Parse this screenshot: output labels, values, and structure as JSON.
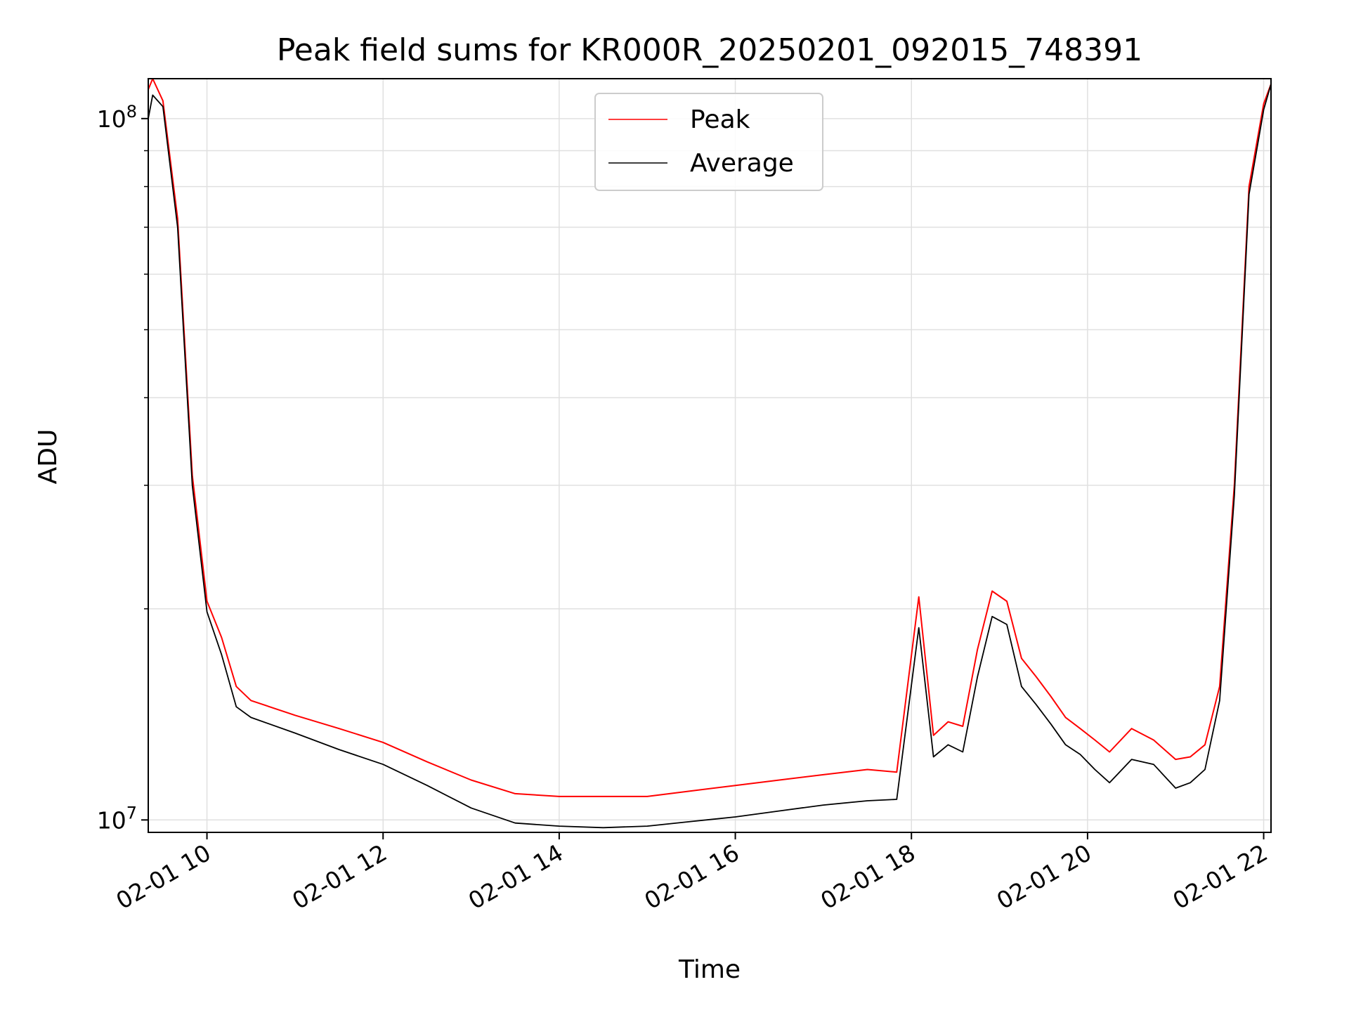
{
  "chart_data": {
    "type": "line",
    "title": "Peak field sums for KR000R_20250201_092015_748391",
    "xlabel": "Time",
    "ylabel": "ADU",
    "x_scale": "time",
    "y_scale": "log",
    "xlim": [
      "2025-02-01 09:20",
      "2025-02-01 22:05"
    ],
    "ylim": [
      9600000,
      114000000
    ],
    "x_ticks": [
      {
        "value": "2025-02-01 10:00",
        "label": "02-01 10"
      },
      {
        "value": "2025-02-01 12:00",
        "label": "02-01 12"
      },
      {
        "value": "2025-02-01 14:00",
        "label": "02-01 14"
      },
      {
        "value": "2025-02-01 16:00",
        "label": "02-01 16"
      },
      {
        "value": "2025-02-01 18:00",
        "label": "02-01 18"
      },
      {
        "value": "2025-02-01 20:00",
        "label": "02-01 20"
      },
      {
        "value": "2025-02-01 22:00",
        "label": "02-01 22"
      }
    ],
    "y_major_ticks": [
      {
        "value": 10000000,
        "base": "10",
        "exp": "7"
      },
      {
        "value": 100000000,
        "base": "10",
        "exp": "8"
      }
    ],
    "y_minor_ticks": [
      20000000,
      30000000,
      40000000,
      50000000,
      60000000,
      70000000,
      80000000,
      90000000
    ],
    "grid": true,
    "legend_position": "upper center",
    "colors": {
      "peak": "#ff0000",
      "average": "#000000",
      "grid": "#e0e0e0"
    },
    "series": [
      {
        "name": "Peak",
        "color": "#ff0000",
        "x": [
          "2025-02-01 09:20",
          "2025-02-01 09:23",
          "2025-02-01 09:30",
          "2025-02-01 09:40",
          "2025-02-01 09:50",
          "2025-02-01 10:00",
          "2025-02-01 10:10",
          "2025-02-01 10:20",
          "2025-02-01 10:30",
          "2025-02-01 11:00",
          "2025-02-01 11:30",
          "2025-02-01 12:00",
          "2025-02-01 12:30",
          "2025-02-01 13:00",
          "2025-02-01 13:30",
          "2025-02-01 14:00",
          "2025-02-01 14:30",
          "2025-02-01 15:00",
          "2025-02-01 15:30",
          "2025-02-01 16:00",
          "2025-02-01 16:30",
          "2025-02-01 17:00",
          "2025-02-01 17:30",
          "2025-02-01 17:50",
          "2025-02-01 18:05",
          "2025-02-01 18:15",
          "2025-02-01 18:25",
          "2025-02-01 18:35",
          "2025-02-01 18:45",
          "2025-02-01 18:55",
          "2025-02-01 19:05",
          "2025-02-01 19:15",
          "2025-02-01 19:25",
          "2025-02-01 19:35",
          "2025-02-01 19:45",
          "2025-02-01 19:55",
          "2025-02-01 20:05",
          "2025-02-01 20:15",
          "2025-02-01 20:30",
          "2025-02-01 20:45",
          "2025-02-01 21:00",
          "2025-02-01 21:10",
          "2025-02-01 21:20",
          "2025-02-01 21:30",
          "2025-02-01 21:40",
          "2025-02-01 21:50",
          "2025-02-01 22:00",
          "2025-02-01 22:05"
        ],
        "values": [
          110000000,
          114000000,
          106000000,
          72000000,
          31000000,
          20500000,
          18200000,
          15500000,
          14800000,
          14100000,
          13500000,
          12900000,
          12100000,
          11400000,
          10900000,
          10800000,
          10800000,
          10800000,
          11000000,
          11200000,
          11400000,
          11600000,
          11800000,
          11700000,
          20800000,
          13200000,
          13800000,
          13600000,
          17500000,
          21200000,
          20500000,
          17000000,
          16000000,
          15000000,
          14000000,
          13500000,
          13000000,
          12500000,
          13500000,
          13000000,
          12200000,
          12300000,
          12800000,
          15500000,
          30000000,
          80000000,
          105000000,
          112000000
        ]
      },
      {
        "name": "Average",
        "color": "#000000",
        "x": [
          "2025-02-01 09:20",
          "2025-02-01 09:23",
          "2025-02-01 09:30",
          "2025-02-01 09:40",
          "2025-02-01 09:50",
          "2025-02-01 10:00",
          "2025-02-01 10:10",
          "2025-02-01 10:20",
          "2025-02-01 10:30",
          "2025-02-01 11:00",
          "2025-02-01 11:30",
          "2025-02-01 12:00",
          "2025-02-01 12:30",
          "2025-02-01 13:00",
          "2025-02-01 13:30",
          "2025-02-01 14:00",
          "2025-02-01 14:30",
          "2025-02-01 15:00",
          "2025-02-01 15:30",
          "2025-02-01 16:00",
          "2025-02-01 16:30",
          "2025-02-01 17:00",
          "2025-02-01 17:30",
          "2025-02-01 17:50",
          "2025-02-01 18:05",
          "2025-02-01 18:15",
          "2025-02-01 18:25",
          "2025-02-01 18:35",
          "2025-02-01 18:45",
          "2025-02-01 18:55",
          "2025-02-01 19:05",
          "2025-02-01 19:15",
          "2025-02-01 19:25",
          "2025-02-01 19:35",
          "2025-02-01 19:45",
          "2025-02-01 19:55",
          "2025-02-01 20:05",
          "2025-02-01 20:15",
          "2025-02-01 20:30",
          "2025-02-01 20:45",
          "2025-02-01 21:00",
          "2025-02-01 21:10",
          "2025-02-01 21:20",
          "2025-02-01 21:30",
          "2025-02-01 21:40",
          "2025-02-01 21:50",
          "2025-02-01 22:00",
          "2025-02-01 22:05"
        ],
        "values": [
          100000000,
          108000000,
          104000000,
          70000000,
          30000000,
          19800000,
          17200000,
          14500000,
          14000000,
          13300000,
          12600000,
          12000000,
          11200000,
          10400000,
          9900000,
          9800000,
          9750000,
          9800000,
          9950000,
          10100000,
          10300000,
          10500000,
          10650000,
          10700000,
          18800000,
          12300000,
          12800000,
          12500000,
          16000000,
          19500000,
          19000000,
          15500000,
          14600000,
          13700000,
          12800000,
          12400000,
          11800000,
          11300000,
          12200000,
          12000000,
          11100000,
          11300000,
          11800000,
          14800000,
          29000000,
          78000000,
          103000000,
          112000000
        ]
      }
    ]
  }
}
